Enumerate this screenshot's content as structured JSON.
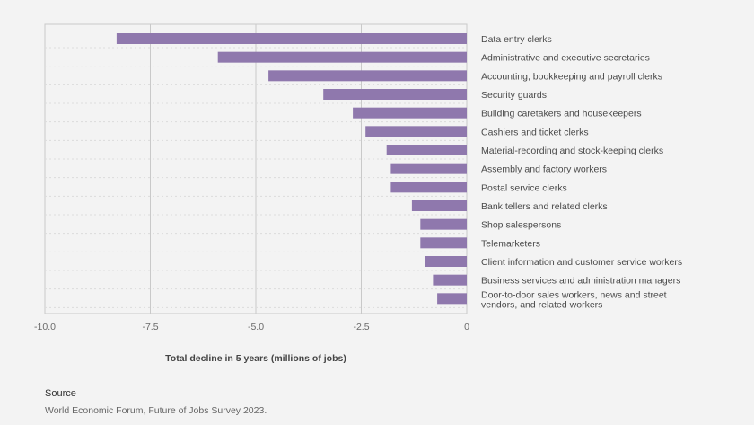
{
  "chart_data": {
    "type": "bar",
    "orientation": "horizontal",
    "categories": [
      "Data entry clerks",
      "Administrative and executive secretaries",
      "Accounting, bookkeeping and payroll clerks",
      "Security guards",
      "Building caretakers and housekeepers",
      "Cashiers and ticket clerks",
      "Material-recording and stock-keeping clerks",
      "Assembly and factory workers",
      "Postal service clerks",
      "Bank tellers and related clerks",
      "Shop salespersons",
      "Telemarketers",
      "Client information and customer service workers",
      "Business services and administration managers",
      [
        "Door-to-door sales workers, news and street",
        "vendors, and related workers"
      ]
    ],
    "values": [
      -8.3,
      -5.9,
      -4.7,
      -3.4,
      -2.7,
      -2.4,
      -1.9,
      -1.8,
      -1.8,
      -1.3,
      -1.1,
      -1.1,
      -1.0,
      -0.8,
      -0.7
    ],
    "xlim": [
      -10,
      0
    ],
    "xticks": [
      -10,
      -7.5,
      -5,
      -2.5,
      0
    ],
    "xtick_labels": [
      "-10.0",
      "-7.5",
      "-5.0",
      "-2.5",
      "0"
    ],
    "xlabel": "Total decline in 5 years (millions of jobs)",
    "bar_color": "#8f78ad",
    "grid": true
  },
  "footer": {
    "source_title": "Source",
    "source_text": "World Economic Forum, Future of Jobs Survey 2023."
  }
}
